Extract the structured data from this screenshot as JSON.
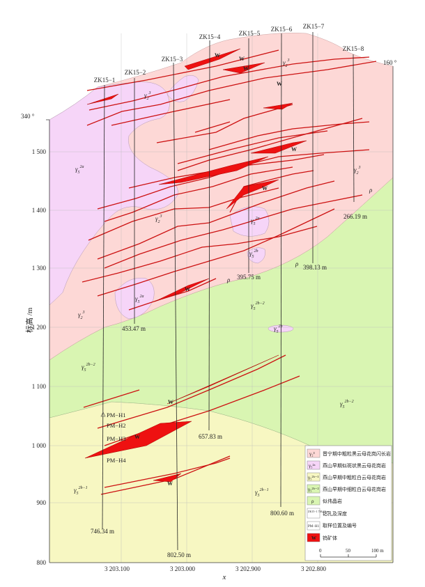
{
  "axes": {
    "ylabel": "标高 /m",
    "xlabel": "x",
    "y_ticks": [
      "800",
      "900",
      "1 000",
      "1 100",
      "1 200",
      "1 300",
      "1 400",
      "1 500"
    ],
    "x_ticks": [
      "3 203.100",
      "3 203.000",
      "3 202.900",
      "3 202.800"
    ],
    "bearing_left": "340 °",
    "bearing_right": "160 °"
  },
  "boreholes": [
    {
      "name": "ZK15−1",
      "depth": "746.34  m"
    },
    {
      "name": "ZK15−2",
      "depth": "453.47  m"
    },
    {
      "name": "ZK15−3",
      "depth": "802.50  m"
    },
    {
      "name": "ZK15−4",
      "depth": "657.83  m"
    },
    {
      "name": "ZK15−5",
      "depth": "395.75  m"
    },
    {
      "name": "ZK15−6",
      "depth": "800.60  m"
    },
    {
      "name": "ZK15−7",
      "depth": "398.13  m"
    },
    {
      "name": "ZK15−8",
      "depth": "266.19  m"
    }
  ],
  "samples": [
    "PM−H1",
    "PM−H2",
    "PM−H3",
    "PM−H4"
  ],
  "unit_labels": {
    "g2_3": {
      "base": "γ",
      "sub": "2",
      "sup": "3"
    },
    "g5_2a": {
      "base": "γ",
      "sub": "5",
      "sup": "2a"
    },
    "g5_2b": {
      "base": "γ",
      "sub": "5",
      "sup": "2b"
    },
    "g5_2b2": {
      "base": "γ",
      "sub": "5",
      "sup": "2b−2"
    },
    "g5_2b1": {
      "base": "γ",
      "sub": "5",
      "sup": "2b−1"
    },
    "rho": "ρ",
    "w": "W"
  },
  "legend": {
    "items": [
      {
        "sym": "γ₂³",
        "label": "晋宁期中粗粒黑云母花岗闪长岩",
        "color": "#fdd8d6"
      },
      {
        "sym": "γ₅²ᵃ",
        "label": "燕山早期似斑状黑云母花岗岩",
        "color": "#f6d5f8"
      },
      {
        "sym": "γ₅²ᵇ⁻¹",
        "label": "燕山早期中粗粒白云母花岗岩",
        "color": "#f7f7c2"
      },
      {
        "sym": "γ₅²ᵇ⁻²",
        "label": "燕山早期中细粒白云母花岗岩",
        "color": "#d9f5b2"
      },
      {
        "sym": "ρ",
        "label": "似伟晶岩",
        "color": "#d9f5b2"
      },
      {
        "sym": "ZK15−1 746.34 m",
        "label": "钻孔及深度",
        "color": "#ffffff"
      },
      {
        "sym": "PM−H1",
        "label": "取样位置及编号",
        "color": "#ffffff"
      },
      {
        "sym": "W",
        "label": "钨矿体",
        "color": "#ee1111"
      }
    ],
    "scale": {
      "ticks": [
        "0",
        "50",
        "100 m"
      ]
    }
  },
  "colors": {
    "pink": "#fdd8d6",
    "purple": "#f6d5f8",
    "green": "#d9f5b2",
    "yellow": "#f7f7c2",
    "vein": "#cc1111",
    "ore": "#ee1111"
  }
}
